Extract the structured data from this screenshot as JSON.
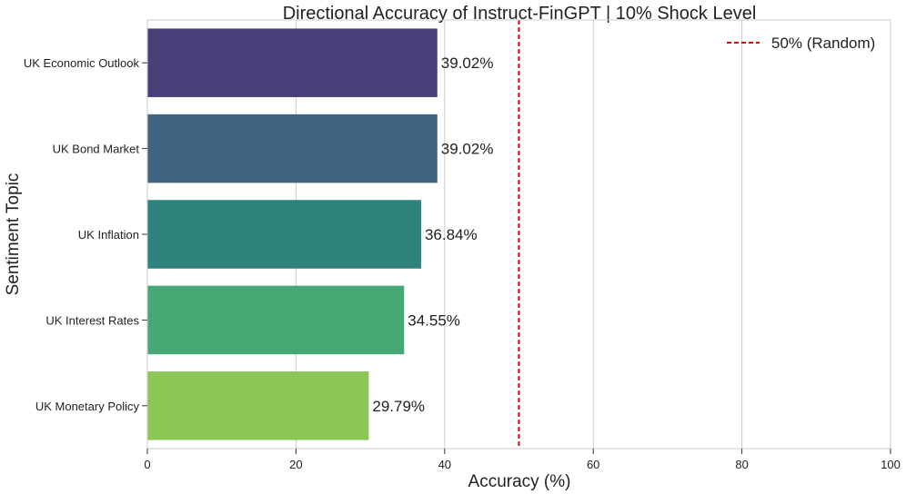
{
  "chart_data": {
    "type": "bar",
    "orientation": "horizontal",
    "title": "Directional Accuracy of Instruct-FinGPT | 10% Shock Level",
    "xlabel": "Accuracy (%)",
    "ylabel": "Sentiment Topic",
    "xlim": [
      0,
      100
    ],
    "xticks": [
      0,
      20,
      40,
      60,
      80,
      100
    ],
    "grid": "vertical",
    "categories": [
      "UK Economic Outlook",
      "UK Bond Market",
      "UK Inflation",
      "UK Interest Rates",
      "UK Monetary Policy"
    ],
    "values": [
      39.02,
      39.02,
      36.84,
      34.55,
      29.79
    ],
    "value_labels": [
      "39.02%",
      "39.02%",
      "36.84%",
      "34.55%",
      "29.79%"
    ],
    "bar_colors": [
      "#4b3f7b",
      "#3f6582",
      "#2e837c",
      "#48a875",
      "#8cc654"
    ],
    "reference_line": {
      "value": 50,
      "label": "50% (Random)",
      "color": "#e8000b",
      "style": "dashed"
    },
    "legend_position": "top-right"
  }
}
